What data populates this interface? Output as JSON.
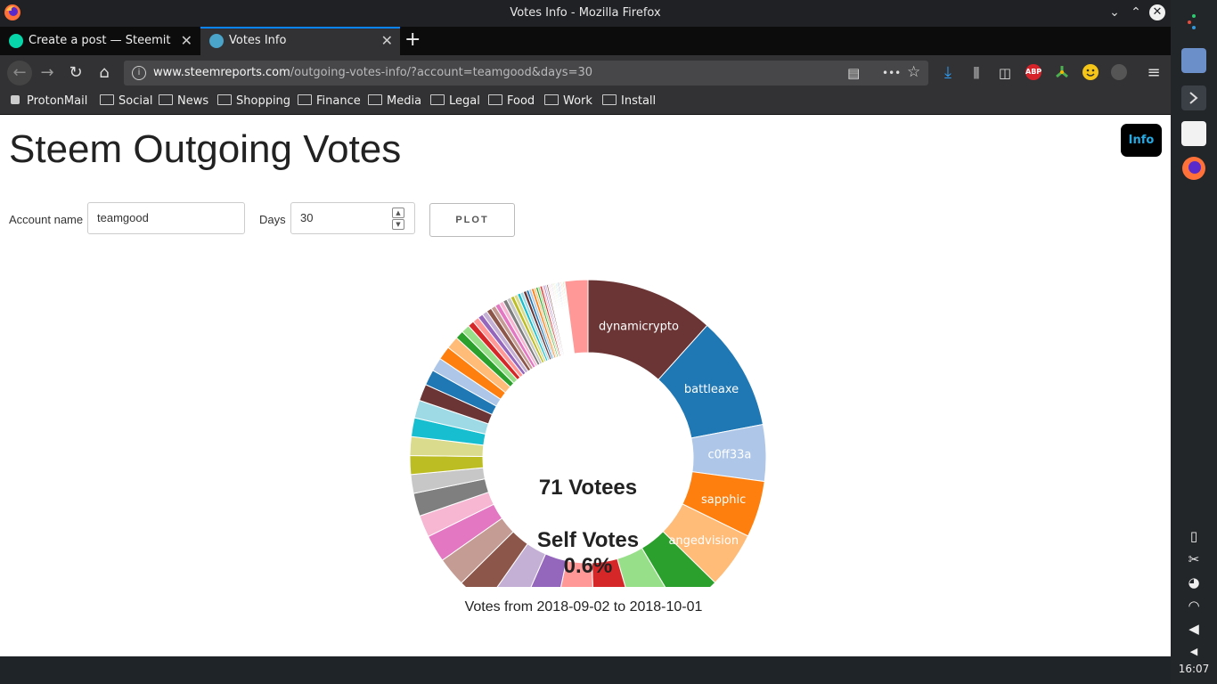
{
  "window": {
    "title": "Votes Info - Mozilla Firefox",
    "min": "⌄",
    "max": "⌃",
    "close": "✕"
  },
  "tabs": [
    {
      "label": "Create a post — Steemit",
      "close": "✕",
      "icon_color": "#06d6a9"
    },
    {
      "label": "Votes Info",
      "close": "✕",
      "icon_color": "#4aa3c8"
    }
  ],
  "newtab": "+",
  "nav": {
    "back": "←",
    "forward": "→",
    "reload": "↻",
    "home": "⌂",
    "url_host": "www.steemreports.com",
    "url_path": "/outgoing-votes-info/?account=teamgood&days=30",
    "info": "i",
    "reader": "▤",
    "more": "•••",
    "star": "☆",
    "download": "⤓",
    "library": "⫼",
    "sidebar": "◫",
    "abp": "ABP",
    "menu": "≡"
  },
  "bookmarks": [
    {
      "label": "ProtonMail",
      "icon": "lock-icon"
    },
    {
      "label": "Social",
      "icon": "folder-icon"
    },
    {
      "label": "News",
      "icon": "folder-icon"
    },
    {
      "label": "Shopping",
      "icon": "folder-icon"
    },
    {
      "label": "Finance",
      "icon": "folder-icon"
    },
    {
      "label": "Media",
      "icon": "folder-icon"
    },
    {
      "label": "Legal",
      "icon": "folder-icon"
    },
    {
      "label": "Food",
      "icon": "folder-icon"
    },
    {
      "label": "Work",
      "icon": "folder-icon"
    },
    {
      "label": "Install",
      "icon": "folder-icon"
    }
  ],
  "page": {
    "title": "Steem Outgoing Votes",
    "info_button": "Info",
    "account_label": "Account name",
    "account_value": "teamgood",
    "days_label": "Days",
    "days_value": "30",
    "spin_up": "▲",
    "spin_down": "▼",
    "plot_button": "PLOT",
    "footer": "Votes from 2018-09-02 to 2018-10-01"
  },
  "chart_data": {
    "type": "pie",
    "center_text": [
      "71 Votees",
      "Self Votes",
      "0.6%"
    ],
    "labeled_slices": [
      "dynamicrypto",
      "battleaxe",
      "c0ff33a",
      "sapphic",
      "angedvision"
    ],
    "slices": [
      {
        "label": "dynamicrypto",
        "value": 12.3,
        "color": "#6b3535"
      },
      {
        "label": "battleaxe",
        "value": 10.9,
        "color": "#1f77b4"
      },
      {
        "label": "c0ff33a",
        "value": 5.4,
        "color": "#aec7e8"
      },
      {
        "label": "sapphic",
        "value": 5.4,
        "color": "#ff7f0e"
      },
      {
        "label": "angedvision",
        "value": 5.4,
        "color": "#ffbb78"
      },
      {
        "label": "",
        "value": 4.3,
        "color": "#2ca02c"
      },
      {
        "label": "",
        "value": 4.3,
        "color": "#98df8a"
      },
      {
        "label": "",
        "value": 4.1,
        "color": "#d62728"
      },
      {
        "label": "",
        "value": 4.1,
        "color": "#ff9896"
      },
      {
        "label": "",
        "value": 3.5,
        "color": "#9467bd"
      },
      {
        "label": "",
        "value": 3.3,
        "color": "#c5b0d5"
      },
      {
        "label": "",
        "value": 3.0,
        "color": "#8c564b"
      },
      {
        "label": "",
        "value": 2.8,
        "color": "#c49c94"
      },
      {
        "label": "",
        "value": 2.6,
        "color": "#e377c2"
      },
      {
        "label": "",
        "value": 2.1,
        "color": "#f7b6d2"
      },
      {
        "label": "",
        "value": 2.2,
        "color": "#7f7f7f"
      },
      {
        "label": "",
        "value": 1.8,
        "color": "#c7c7c7"
      },
      {
        "label": "",
        "value": 1.8,
        "color": "#bcbd22"
      },
      {
        "label": "",
        "value": 1.8,
        "color": "#dbdb8d"
      },
      {
        "label": "",
        "value": 1.8,
        "color": "#17becf"
      },
      {
        "label": "",
        "value": 1.7,
        "color": "#9edae5"
      },
      {
        "label": "",
        "value": 1.6,
        "color": "#6b3535"
      },
      {
        "label": "",
        "value": 1.5,
        "color": "#1f77b4"
      },
      {
        "label": "",
        "value": 1.3,
        "color": "#aec7e8"
      },
      {
        "label": "",
        "value": 1.3,
        "color": "#ff7f0e"
      },
      {
        "label": "",
        "value": 1.2,
        "color": "#ffbb78"
      },
      {
        "label": "",
        "value": 0.8,
        "color": "#2ca02c"
      },
      {
        "label": "",
        "value": 0.8,
        "color": "#98df8a"
      },
      {
        "label": "",
        "value": 0.6,
        "color": "#d62728"
      },
      {
        "label": "",
        "value": 0.6,
        "color": "#ff9896"
      },
      {
        "label": "",
        "value": 0.5,
        "color": "#9467bd"
      },
      {
        "label": "",
        "value": 0.5,
        "color": "#c5b0d5"
      },
      {
        "label": "",
        "value": 0.5,
        "color": "#8c564b"
      },
      {
        "label": "",
        "value": 0.45,
        "color": "#c49c94"
      },
      {
        "label": "",
        "value": 0.45,
        "color": "#e377c2"
      },
      {
        "label": "",
        "value": 0.4,
        "color": "#f7b6d2"
      },
      {
        "label": "",
        "value": 0.4,
        "color": "#7f7f7f"
      },
      {
        "label": "",
        "value": 0.4,
        "color": "#c7c7c7"
      },
      {
        "label": "",
        "value": 0.35,
        "color": "#bcbd22"
      },
      {
        "label": "",
        "value": 0.35,
        "color": "#dbdb8d"
      },
      {
        "label": "",
        "value": 0.3,
        "color": "#17becf"
      },
      {
        "label": "",
        "value": 0.3,
        "color": "#9edae5"
      },
      {
        "label": "",
        "value": 0.3,
        "color": "#6b3535"
      },
      {
        "label": "",
        "value": 0.25,
        "color": "#1f77b4"
      },
      {
        "label": "",
        "value": 0.25,
        "color": "#aec7e8"
      },
      {
        "label": "",
        "value": 0.25,
        "color": "#ff7f0e"
      },
      {
        "label": "",
        "value": 0.2,
        "color": "#ffbb78"
      },
      {
        "label": "",
        "value": 0.2,
        "color": "#2ca02c"
      },
      {
        "label": "",
        "value": 0.2,
        "color": "#98df8a"
      },
      {
        "label": "",
        "value": 0.2,
        "color": "#d62728"
      },
      {
        "label": "",
        "value": 0.15,
        "color": "#ff9896"
      },
      {
        "label": "",
        "value": 0.15,
        "color": "#9467bd"
      },
      {
        "label": "",
        "value": 0.15,
        "color": "#c5b0d5"
      },
      {
        "label": "",
        "value": 0.15,
        "color": "#8c564b"
      },
      {
        "label": "",
        "value": 0.1,
        "color": "#c49c94"
      },
      {
        "label": "",
        "value": 0.1,
        "color": "#e377c2"
      },
      {
        "label": "",
        "value": 0.1,
        "color": "#f7b6d2"
      },
      {
        "label": "",
        "value": 0.1,
        "color": "#7f7f7f"
      },
      {
        "label": "",
        "value": 0.1,
        "color": "#c7c7c7"
      },
      {
        "label": "",
        "value": 0.1,
        "color": "#bcbd22"
      },
      {
        "label": "",
        "value": 0.1,
        "color": "#dbdb8d"
      },
      {
        "label": "",
        "value": 0.1,
        "color": "#17becf"
      },
      {
        "label": "",
        "value": 0.1,
        "color": "#9edae5"
      },
      {
        "label": "",
        "value": 0.1,
        "color": "#6b3535"
      },
      {
        "label": "",
        "value": 0.1,
        "color": "#1f77b4"
      },
      {
        "label": "",
        "value": 0.1,
        "color": "#aec7e8"
      },
      {
        "label": "",
        "value": 0.1,
        "color": "#ff7f0e"
      },
      {
        "label": "",
        "value": 0.1,
        "color": "#ffbb78"
      },
      {
        "label": "",
        "value": 0.1,
        "color": "#2ca02c"
      },
      {
        "label": "",
        "value": 0.1,
        "color": "#98df8a"
      },
      {
        "label": "",
        "value": 2.2,
        "color": "#ff9896"
      }
    ]
  },
  "panel": {
    "clock": "16:07"
  }
}
